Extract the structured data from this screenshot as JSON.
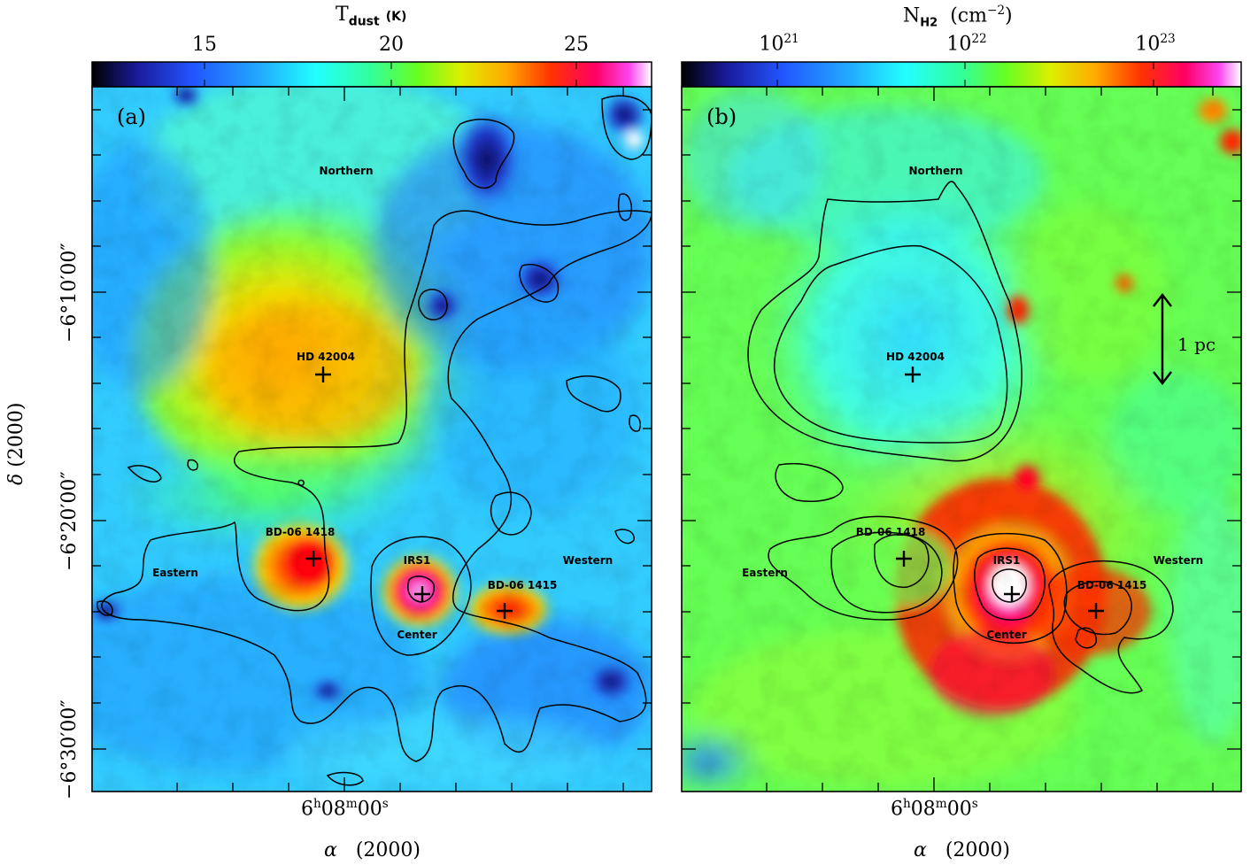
{
  "panel_a": {
    "label": "(a)",
    "colorbar_title_main": "T",
    "colorbar_title_sub": "dust",
    "colorbar_title_unit": "(K)",
    "colorbar_ticks": [
      "15",
      "20",
      "25"
    ],
    "sources": {
      "northern": "Northern",
      "hd42004": "HD 42004",
      "bd1418": "BD-06 1418",
      "eastern": "Eastern",
      "irs1": "IRS1",
      "center": "Center",
      "bd1415": "BD-06 1415",
      "western": "Western"
    }
  },
  "panel_b": {
    "label": "(b)",
    "colorbar_title_main": "N",
    "colorbar_title_sub": "H2",
    "colorbar_title_unit": "(cm",
    "colorbar_title_exp": "−2",
    "colorbar_title_close": ")",
    "colorbar_ticks": [
      {
        "base": "10",
        "exp": "21"
      },
      {
        "base": "10",
        "exp": "22"
      },
      {
        "base": "10",
        "exp": "23"
      }
    ],
    "scale_bar": "1 pc",
    "sources": {
      "northern": "Northern",
      "hd42004": "HD 42004",
      "bd1418": "BD-06 1418",
      "eastern": "Eastern",
      "irs1": "IRS1",
      "center": "Center",
      "bd1415": "BD-06 1415",
      "western": "Western"
    }
  },
  "axes": {
    "ylabel_sym": "δ",
    "ylabel_text": "(2000)",
    "xlabel_sym": "α",
    "xlabel_text": "(2000)",
    "ra_tick": {
      "h": "6",
      "m": "08",
      "s": "00"
    },
    "dec_ticks": [
      "−6°10′00″",
      "−6°20′00″",
      "−6°30′00″"
    ]
  },
  "colors": {
    "tdust_colormap": [
      "#000000",
      "#1a1aa0",
      "#2255ff",
      "#22aaff",
      "#22ffff",
      "#33ff99",
      "#66ff22",
      "#ddee00",
      "#ffaa00",
      "#ff4400",
      "#ff0033",
      "#ff00cc",
      "#ffffff"
    ],
    "nh2_colormap": [
      "#000000",
      "#1a1aa0",
      "#2255ff",
      "#22aaff",
      "#22ffff",
      "#33ff99",
      "#66ff22",
      "#ddee00",
      "#ffaa00",
      "#ff4400",
      "#ff0033",
      "#ff00cc",
      "#ffffff"
    ]
  }
}
